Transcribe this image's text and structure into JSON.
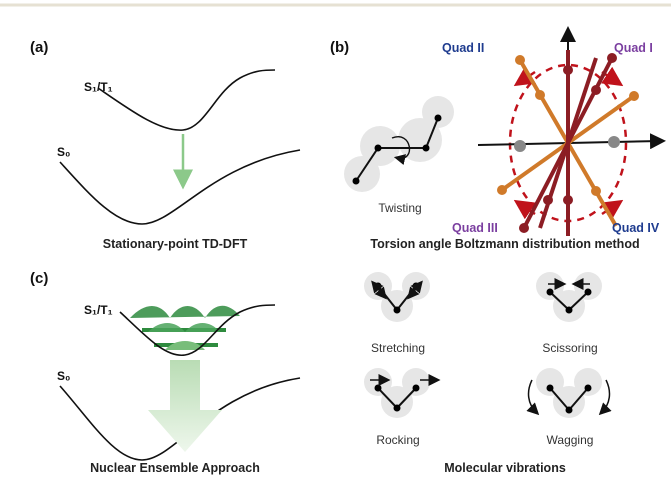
{
  "panel_a": {
    "label": "(a)",
    "upper_state": "S₁/T₁",
    "lower_state": "S₀",
    "caption": "Stationary-point TD-DFT"
  },
  "panel_b": {
    "label": "(b)",
    "twist_label": "Twisting",
    "quadrants": [
      "Quad II",
      "Quad I",
      "Quad III",
      "Quad IV"
    ],
    "caption": "Torsion angle Boltzmann distribution method"
  },
  "panel_c": {
    "label": "(c)",
    "upper_state": "S₁/T₁",
    "lower_state": "S₀",
    "caption": "Nuclear Ensemble Approach"
  },
  "vibrations": {
    "modes": [
      "Stretching",
      "Scissoring",
      "Rocking",
      "Wagging"
    ],
    "caption": "Molecular vibrations"
  }
}
